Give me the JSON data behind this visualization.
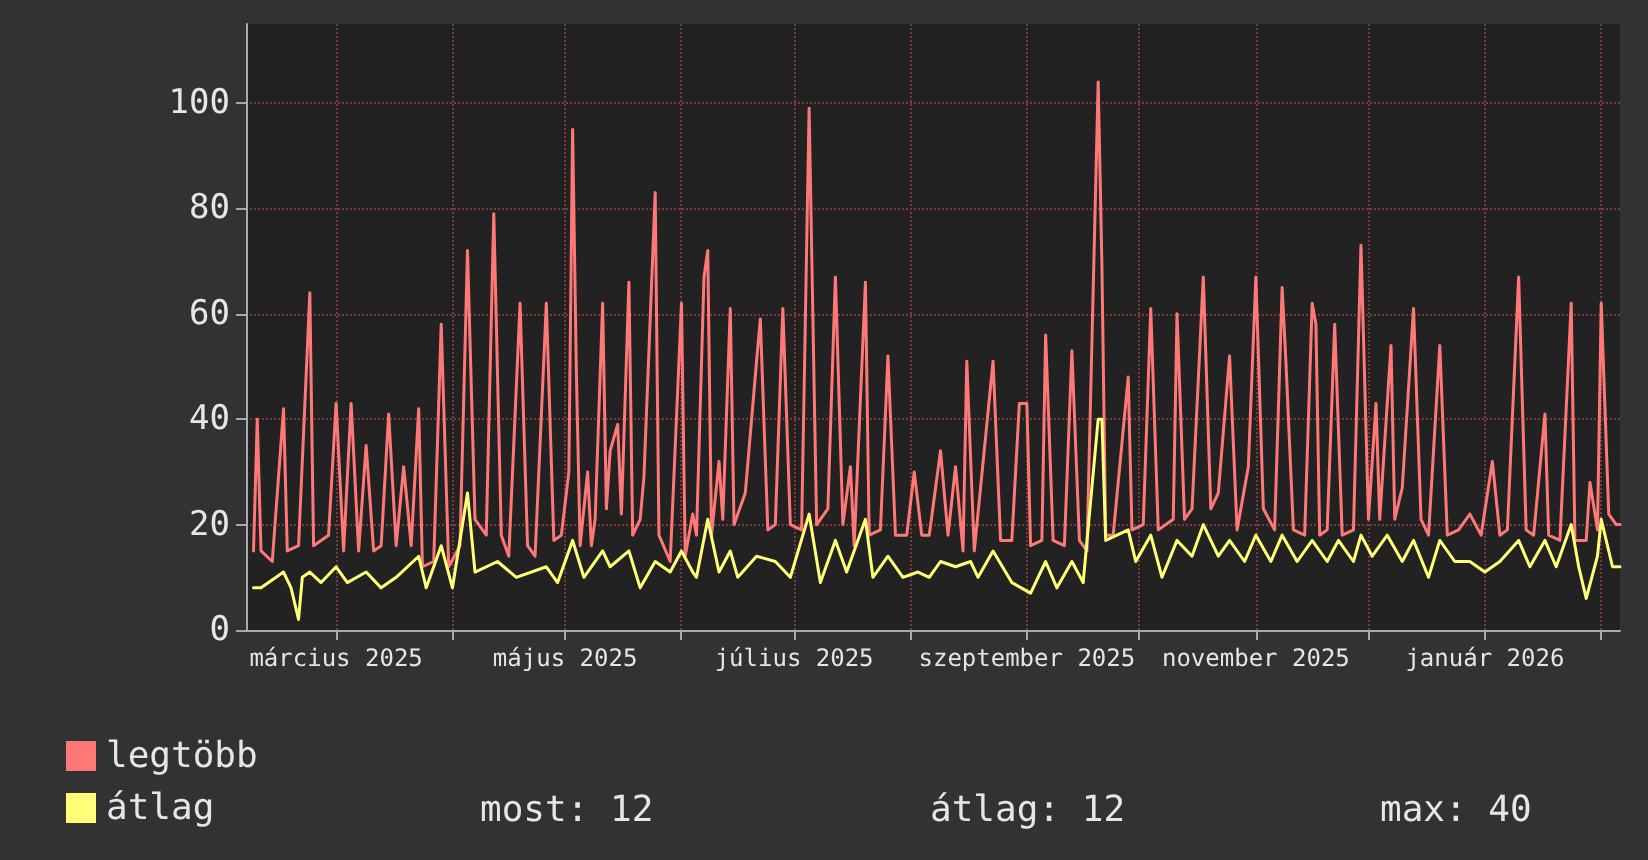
{
  "chart_data": {
    "type": "line",
    "xlim": [
      "2025-02-05",
      "2026-02-06"
    ],
    "xticks": [
      {
        "value": "2025-03-01",
        "label": "március 2025"
      },
      {
        "value": "2025-04-01",
        "label": null
      },
      {
        "value": "2025-05-01",
        "label": "május 2025"
      },
      {
        "value": "2025-06-01",
        "label": null
      },
      {
        "value": "2025-07-01",
        "label": "július 2025"
      },
      {
        "value": "2025-08-01",
        "label": null
      },
      {
        "value": "2025-09-01",
        "label": "szeptember 2025"
      },
      {
        "value": "2025-10-01",
        "label": null
      },
      {
        "value": "2025-11-01",
        "label": "november 2025"
      },
      {
        "value": "2025-12-01",
        "label": null
      },
      {
        "value": "2026-01-01",
        "label": "január 2026"
      },
      {
        "value": "2026-02-01",
        "label": null
      }
    ],
    "ylim": [
      0,
      115
    ],
    "yticks": [
      0,
      20,
      40,
      60,
      80,
      100
    ],
    "grid": true,
    "legend": "bottom",
    "marker": "none",
    "line_style": "solid",
    "annotations": [
      "most: 12",
      "átlag: 12",
      "max: 40"
    ],
    "series": [
      {
        "name": "legtöbb",
        "color": "#ff7878",
        "x": [
          "2025-02-07",
          "2025-02-08",
          "2025-02-09",
          "2025-02-12",
          "2025-02-15",
          "2025-02-16",
          "2025-02-19",
          "2025-02-22",
          "2025-02-23",
          "2025-02-27",
          "2025-03-01",
          "2025-03-03",
          "2025-03-05",
          "2025-03-07",
          "2025-03-09",
          "2025-03-11",
          "2025-03-13",
          "2025-03-15",
          "2025-03-17",
          "2025-03-19",
          "2025-03-21",
          "2025-03-23",
          "2025-03-24",
          "2025-03-27",
          "2025-03-29",
          "2025-03-31",
          "2025-04-03",
          "2025-04-05",
          "2025-04-07",
          "2025-04-10",
          "2025-04-12",
          "2025-04-14",
          "2025-04-16",
          "2025-04-19",
          "2025-04-21",
          "2025-04-23",
          "2025-04-26",
          "2025-04-28",
          "2025-04-30",
          "2025-05-02",
          "2025-05-03",
          "2025-05-04",
          "2025-05-05",
          "2025-05-07",
          "2025-05-08",
          "2025-05-09",
          "2025-05-11",
          "2025-05-12",
          "2025-05-13",
          "2025-05-15",
          "2025-05-16",
          "2025-05-18",
          "2025-05-19",
          "2025-05-21",
          "2025-05-22",
          "2025-05-25",
          "2025-05-26",
          "2025-05-29",
          "2025-06-01",
          "2025-06-02",
          "2025-06-04",
          "2025-06-05",
          "2025-06-07",
          "2025-06-08",
          "2025-06-09",
          "2025-06-11",
          "2025-06-12",
          "2025-06-14",
          "2025-06-15",
          "2025-06-18",
          "2025-06-21",
          "2025-06-22",
          "2025-06-24",
          "2025-06-26",
          "2025-06-28",
          "2025-06-30",
          "2025-07-03",
          "2025-07-05",
          "2025-07-07",
          "2025-07-10",
          "2025-07-12",
          "2025-07-14",
          "2025-07-16",
          "2025-07-17",
          "2025-07-20",
          "2025-07-21",
          "2025-07-24",
          "2025-07-26",
          "2025-07-28",
          "2025-07-31",
          "2025-08-02",
          "2025-08-04",
          "2025-08-06",
          "2025-08-09",
          "2025-08-11",
          "2025-08-13",
          "2025-08-15",
          "2025-08-16",
          "2025-08-18",
          "2025-08-23",
          "2025-08-25",
          "2025-08-28",
          "2025-08-30",
          "2025-09-01",
          "2025-09-02",
          "2025-09-05",
          "2025-09-06",
          "2025-09-08",
          "2025-09-11",
          "2025-09-13",
          "2025-09-15",
          "2025-09-17",
          "2025-09-20",
          "2025-09-21",
          "2025-09-22",
          "2025-09-24",
          "2025-09-28",
          "2025-09-29",
          "2025-10-02",
          "2025-10-04",
          "2025-10-06",
          "2025-10-10",
          "2025-10-11",
          "2025-10-13",
          "2025-10-15",
          "2025-10-18",
          "2025-10-20",
          "2025-10-22",
          "2025-10-25",
          "2025-10-27",
          "2025-10-30",
          "2025-11-01",
          "2025-11-03",
          "2025-11-06",
          "2025-11-08",
          "2025-11-09",
          "2025-11-11",
          "2025-11-14",
          "2025-11-16",
          "2025-11-17",
          "2025-11-18",
          "2025-11-20",
          "2025-11-22",
          "2025-11-24",
          "2025-11-27",
          "2025-11-29",
          "2025-12-01",
          "2025-12-03",
          "2025-12-04",
          "2025-12-07",
          "2025-12-08",
          "2025-12-10",
          "2025-12-13",
          "2025-12-15",
          "2025-12-17",
          "2025-12-20",
          "2025-12-22",
          "2025-12-25",
          "2025-12-28",
          "2025-12-31",
          "2026-01-03",
          "2026-01-05",
          "2026-01-07",
          "2026-01-10",
          "2026-01-12",
          "2026-01-14",
          "2026-01-17",
          "2026-01-18",
          "2026-01-21",
          "2026-01-24",
          "2026-01-25",
          "2026-01-28",
          "2026-01-29",
          "2026-01-31",
          "2026-02-01",
          "2026-02-03",
          "2026-02-05",
          "2026-02-06"
        ],
        "values": [
          15,
          40,
          15,
          13,
          42,
          15,
          16,
          64,
          16,
          18,
          43,
          15,
          43,
          15,
          35,
          15,
          16,
          41,
          16,
          31,
          16,
          42,
          12,
          13,
          58,
          12,
          16,
          72,
          21,
          18,
          79,
          18,
          14,
          62,
          16,
          14,
          62,
          17,
          18,
          30,
          95,
          49,
          16,
          30,
          16,
          21,
          62,
          23,
          34,
          39,
          22,
          66,
          18,
          21,
          29,
          83,
          18,
          13,
          62,
          14,
          22,
          18,
          67,
          72,
          18,
          32,
          21,
          61,
          20,
          26,
          51,
          59,
          19,
          20,
          61,
          20,
          19,
          99,
          20,
          23,
          67,
          20,
          31,
          16,
          66,
          18,
          19,
          52,
          18,
          18,
          30,
          18,
          18,
          34,
          18,
          31,
          15,
          51,
          15,
          51,
          17,
          17,
          43,
          43,
          16,
          17,
          56,
          17,
          16,
          53,
          17,
          15,
          104,
          69,
          18,
          18,
          48,
          19,
          20,
          61,
          19,
          21,
          60,
          21,
          23,
          67,
          23,
          26,
          52,
          19,
          31,
          67,
          23,
          19,
          65,
          51,
          19,
          18,
          62,
          58,
          18,
          19,
          58,
          18,
          19,
          73,
          21,
          43,
          21,
          54,
          21,
          27,
          61,
          21,
          18,
          54,
          18,
          19,
          22,
          18,
          32,
          18,
          19,
          67,
          19,
          18,
          41,
          18,
          17,
          62,
          17,
          17,
          28,
          19,
          62,
          22,
          20,
          20
        ]
      },
      {
        "name": "átlag",
        "color": "#ffff78",
        "x": [
          "2025-02-07",
          "2025-02-09",
          "2025-02-15",
          "2025-02-17",
          "2025-02-19",
          "2025-02-20",
          "2025-02-22",
          "2025-02-25",
          "2025-03-01",
          "2025-03-04",
          "2025-03-09",
          "2025-03-13",
          "2025-03-17",
          "2025-03-23",
          "2025-03-25",
          "2025-03-29",
          "2025-04-01",
          "2025-04-05",
          "2025-04-07",
          "2025-04-13",
          "2025-04-18",
          "2025-04-26",
          "2025-04-29",
          "2025-05-03",
          "2025-05-06",
          "2025-05-11",
          "2025-05-13",
          "2025-05-18",
          "2025-05-21",
          "2025-05-25",
          "2025-05-29",
          "2025-06-01",
          "2025-06-04",
          "2025-06-05",
          "2025-06-08",
          "2025-06-11",
          "2025-06-14",
          "2025-06-16",
          "2025-06-21",
          "2025-06-26",
          "2025-06-30",
          "2025-07-05",
          "2025-07-08",
          "2025-07-12",
          "2025-07-15",
          "2025-07-20",
          "2025-07-22",
          "2025-07-26",
          "2025-07-30",
          "2025-08-03",
          "2025-08-06",
          "2025-08-09",
          "2025-08-13",
          "2025-08-17",
          "2025-08-19",
          "2025-08-23",
          "2025-08-28",
          "2025-09-02",
          "2025-09-06",
          "2025-09-09",
          "2025-09-13",
          "2025-09-16",
          "2025-09-20",
          "2025-09-21",
          "2025-09-22",
          "2025-09-28",
          "2025-09-30",
          "2025-10-04",
          "2025-10-07",
          "2025-10-11",
          "2025-10-15",
          "2025-10-18",
          "2025-10-22",
          "2025-10-25",
          "2025-10-29",
          "2025-11-01",
          "2025-11-05",
          "2025-11-08",
          "2025-11-12",
          "2025-11-16",
          "2025-11-20",
          "2025-11-23",
          "2025-11-27",
          "2025-11-29",
          "2025-12-02",
          "2025-12-06",
          "2025-12-10",
          "2025-12-13",
          "2025-12-17",
          "2025-12-20",
          "2025-12-24",
          "2025-12-28",
          "2026-01-01",
          "2026-01-05",
          "2026-01-10",
          "2026-01-13",
          "2026-01-17",
          "2026-01-20",
          "2026-01-24",
          "2026-01-26",
          "2026-01-28",
          "2026-01-31",
          "2026-02-01",
          "2026-02-04",
          "2026-02-06"
        ],
        "values": [
          8,
          8,
          11,
          8,
          2,
          10,
          11,
          9,
          12,
          9,
          11,
          8,
          10,
          14,
          8,
          16,
          8,
          26,
          11,
          13,
          10,
          12,
          9,
          17,
          10,
          15,
          12,
          15,
          8,
          13,
          11,
          15,
          11,
          10,
          21,
          11,
          15,
          10,
          14,
          13,
          10,
          22,
          9,
          17,
          11,
          21,
          10,
          14,
          10,
          11,
          10,
          13,
          12,
          13,
          10,
          15,
          9,
          7,
          13,
          8,
          13,
          9,
          40,
          40,
          17,
          19,
          13,
          18,
          10,
          17,
          14,
          20,
          14,
          17,
          13,
          18,
          13,
          18,
          13,
          17,
          13,
          17,
          13,
          18,
          14,
          18,
          13,
          17,
          10,
          17,
          13,
          13,
          11,
          13,
          17,
          12,
          17,
          12,
          20,
          12,
          6,
          14,
          21,
          12,
          12
        ]
      }
    ]
  }
}
